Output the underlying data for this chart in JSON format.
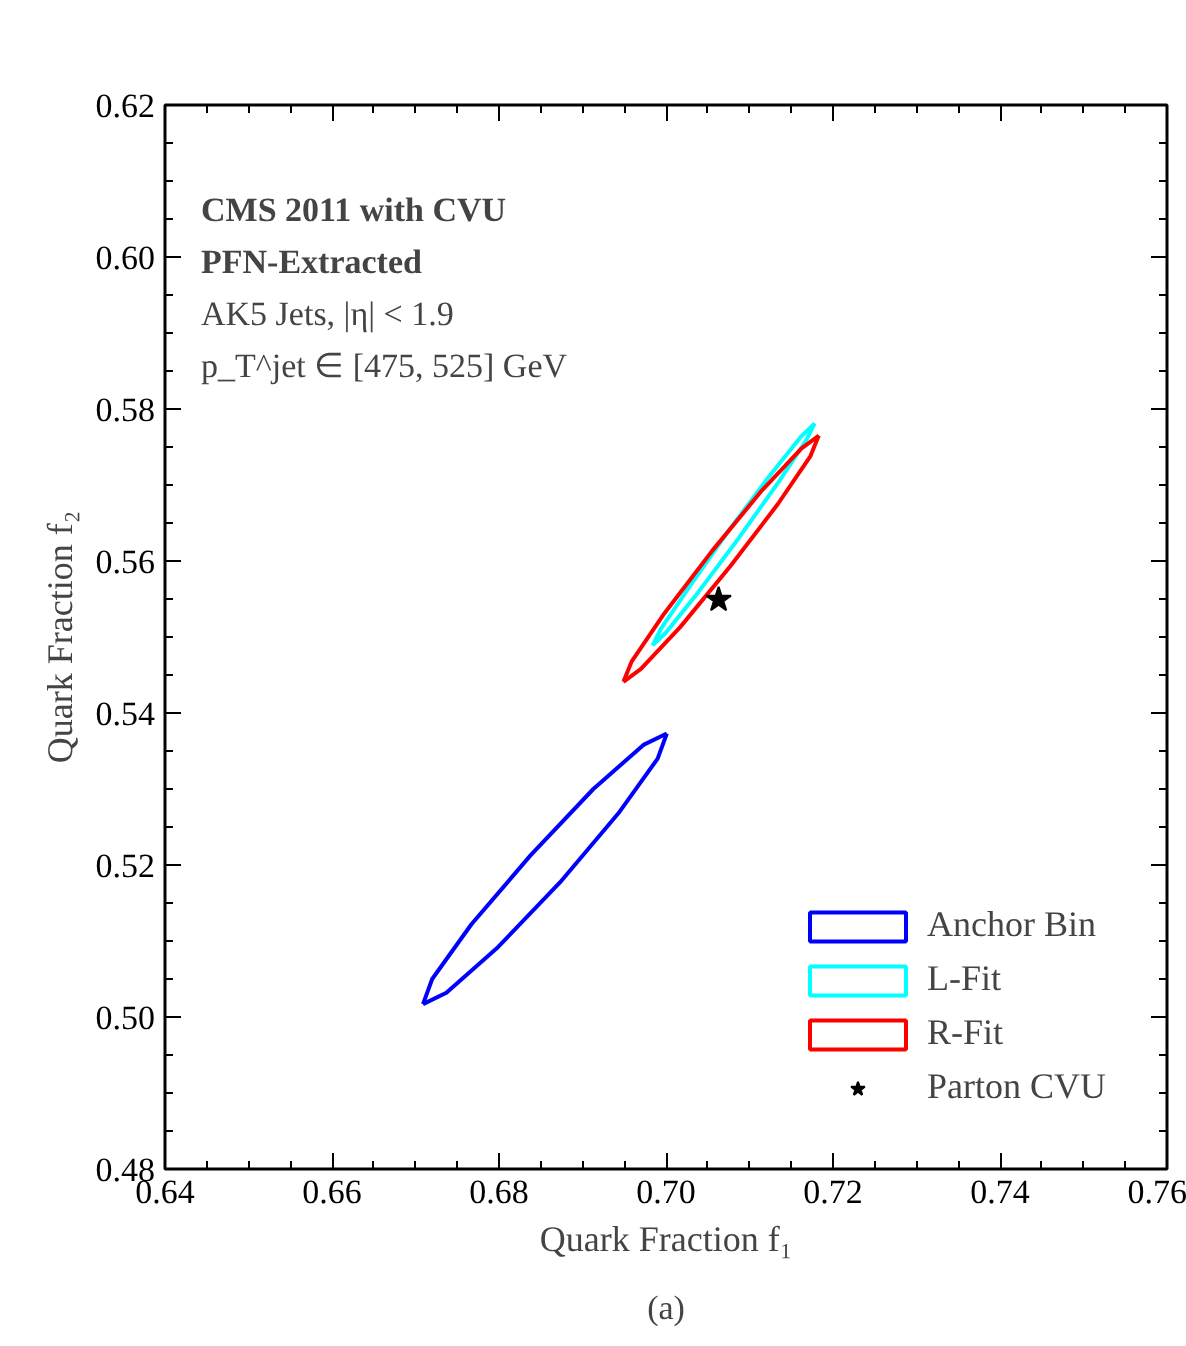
{
  "chart_data": {
    "type": "line",
    "xlabel": "Quark Fraction f₁",
    "ylabel": "Quark Fraction f₂",
    "xlim": [
      0.64,
      0.76
    ],
    "xticks": [
      0.64,
      0.66,
      0.68,
      {
        "value": 0.7,
        "label": "0.70"
      },
      0.72,
      0.74,
      0.76
    ],
    "ylim": [
      0.48,
      0.62
    ],
    "yticks": [
      0.48,
      {
        "value": 0.5,
        "label": "0.50"
      },
      0.52,
      0.54,
      0.56,
      0.58,
      {
        "value": 0.6,
        "label": "0.60"
      },
      0.62
    ],
    "legend": "bottom right",
    "annotations": [
      "CMS 2011 with CVU",
      "PFN-Extracted",
      "AK5 Jets, |η| < 1.9",
      "p_T^jet ∈ [475, 525] GeV",
      "(a)"
    ],
    "series": [
      {
        "name": "Anchor Bin",
        "color": "#0000ff",
        "x": [
          0.6709,
          0.672,
          0.6767,
          0.6838,
          0.6913,
          0.6973,
          0.7001
        ],
        "values": [
          0.5017,
          0.505,
          0.5122,
          0.5213,
          0.53,
          0.5358,
          0.5373
        ]
      },
      {
        "color": "#0000ff",
        "x": [
          0.6709,
          0.6737,
          0.6797,
          0.6873,
          0.6943,
          0.699,
          0.7001
        ],
        "values": [
          0.5017,
          0.5032,
          0.509,
          0.5177,
          0.5268,
          0.534,
          0.5373
        ]
      },
      {
        "name": "L-Fit",
        "color": "#00ffff",
        "x": [
          0.6984,
          0.6994,
          0.7028,
          0.7075,
          0.7124,
          0.7162,
          0.7178
        ],
        "values": [
          0.5489,
          0.5511,
          0.5566,
          0.564,
          0.5712,
          0.5764,
          0.5781
        ]
      },
      {
        "color": "#00ffff",
        "x": [
          0.6984,
          0.7,
          0.7038,
          0.7087,
          0.7135,
          0.7168,
          0.7178
        ],
        "values": [
          0.5489,
          0.5506,
          0.5558,
          0.563,
          0.5704,
          0.5759,
          0.5781
        ]
      },
      {
        "name": "R-Fit",
        "color": "#ff0000",
        "x": [
          0.6949,
          0.6959,
          0.6998,
          0.7055,
          0.7115,
          0.7162,
          0.7183
        ],
        "values": [
          0.5441,
          0.5468,
          0.5531,
          0.5613,
          0.5693,
          0.5748,
          0.5765
        ]
      },
      {
        "color": "#ff0000",
        "x": [
          0.6949,
          0.697,
          0.7017,
          0.7077,
          0.7134,
          0.7173,
          0.7183
        ],
        "values": [
          0.5441,
          0.5458,
          0.5513,
          0.5593,
          0.5675,
          0.5738,
          0.5765
        ]
      },
      {
        "name": "Parton CVU",
        "type": "scatter",
        "marker": "star",
        "color": "#000000",
        "x": [
          0.7063
        ],
        "values": [
          0.5549
        ]
      }
    ]
  }
}
